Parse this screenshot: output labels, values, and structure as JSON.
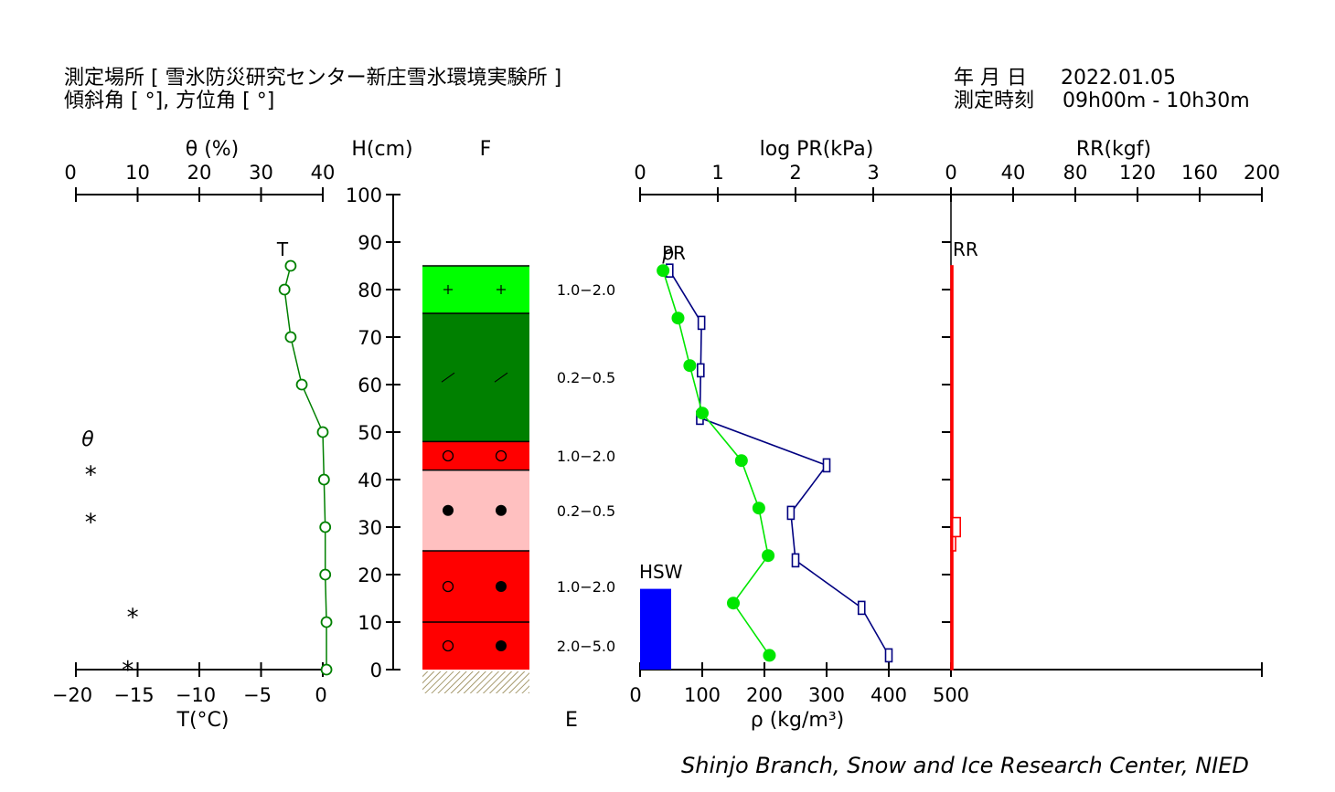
{
  "header": {
    "location_label": "測定場所 [ 雪氷防災研究センター新庄雪氷環境実験所 ]",
    "slope_label": "傾斜角 [ °], 方位角 [ °]",
    "date_label": "年 月 日",
    "date_value": "2022.01.05",
    "time_label": "測定時刻",
    "time_value": "09h00m - 10h30m"
  },
  "credit": "Shinjo Branch, Snow and Ice Research Center, NIED",
  "chart_data": {
    "type": "line",
    "panels": {
      "temperature": {
        "top_label": "θ (%)",
        "top_ticks": [
          "0",
          "10",
          "20",
          "30",
          "40"
        ],
        "bottom_label": "T(°C)",
        "bottom_ticks": [
          "−20",
          "−15",
          "−10",
          "−5",
          "0"
        ],
        "xlim": [
          -20,
          0
        ],
        "series": [
          {
            "name": "T",
            "color": "#008000",
            "points": [
              {
                "h": 85,
                "t": -2.6
              },
              {
                "h": 80,
                "t": -3.1
              },
              {
                "h": 70,
                "t": -2.6
              },
              {
                "h": 60,
                "t": -1.7
              },
              {
                "h": 50,
                "t": 0.0
              },
              {
                "h": 40,
                "t": 0.1
              },
              {
                "h": 30,
                "t": 0.2
              },
              {
                "h": 20,
                "t": 0.2
              },
              {
                "h": 10,
                "t": 0.3
              },
              {
                "h": 0,
                "t": 0.3
              }
            ]
          }
        ],
        "theta_label": "θ",
        "theta_markers": [
          {
            "h": 42,
            "t": -18.8,
            "symbol": "*"
          },
          {
            "h": 32,
            "t": -18.8,
            "symbol": "*"
          },
          {
            "h": 12,
            "t": -15.4,
            "symbol": "*"
          },
          {
            "h": 1,
            "t": -15.8,
            "symbol": "*"
          }
        ]
      },
      "height_axis": {
        "label": "H(cm)",
        "ticks": [
          "0",
          "10",
          "20",
          "30",
          "40",
          "50",
          "60",
          "70",
          "80",
          "90",
          "100"
        ],
        "ylim": [
          0,
          100
        ]
      },
      "layers": {
        "top_label": "F",
        "bottom_label": "E",
        "items": [
          {
            "bottom": 75,
            "top": 85,
            "color": "#00ff00",
            "symbols": [
              "+",
              "+"
            ],
            "grain_size": "1.0−2.0"
          },
          {
            "bottom": 48,
            "top": 75,
            "color": "#008000",
            "symbols": [
              "⟋",
              "⟋"
            ],
            "grain_size": "0.2−0.5"
          },
          {
            "bottom": 42,
            "top": 48,
            "color": "#ff0000",
            "symbols": [
              "○",
              "○"
            ],
            "grain_size": "1.0−2.0"
          },
          {
            "bottom": 25,
            "top": 42,
            "color": "#ffc0c0",
            "symbols": [
              "●",
              "●"
            ],
            "grain_size": "0.2−0.5"
          },
          {
            "bottom": 10,
            "top": 25,
            "color": "#ff0000",
            "symbols": [
              "○",
              "●"
            ],
            "grain_size": "1.0−2.0"
          },
          {
            "bottom": 0,
            "top": 10,
            "color": "#ff0000",
            "symbols": [
              "○",
              "●"
            ],
            "grain_size": "2.0−5.0"
          }
        ]
      },
      "density_pr": {
        "top_label": "log PR(kPa)",
        "top_ticks": [
          "0",
          "1",
          "2",
          "3"
        ],
        "bottom_label": "ρ (kg/m³)",
        "bottom_ticks": [
          "0",
          "100",
          "200",
          "300",
          "400",
          "500"
        ],
        "rho_xlim": [
          0,
          500
        ],
        "logpr_xlim": [
          0,
          4
        ],
        "pr_label": "PR",
        "rho_label": "ρ",
        "density": {
          "color": "#00e600",
          "points": [
            {
              "h": 84,
              "rho": 37
            },
            {
              "h": 74,
              "rho": 61
            },
            {
              "h": 64,
              "rho": 80
            },
            {
              "h": 54,
              "rho": 100
            },
            {
              "h": 44,
              "rho": 163
            },
            {
              "h": 34,
              "rho": 191
            },
            {
              "h": 24,
              "rho": 206
            },
            {
              "h": 14,
              "rho": 150
            },
            {
              "h": 3,
              "rho": 208
            }
          ]
        },
        "pressure": {
          "color": "#000080",
          "points": [
            {
              "h": 84,
              "logpr": 0.38
            },
            {
              "h": 73,
              "logpr": 0.79
            },
            {
              "h": 63,
              "logpr": 0.78
            },
            {
              "h": 53,
              "logpr": 0.77
            },
            {
              "h": 43,
              "logpr": 2.4
            },
            {
              "h": 33,
              "logpr": 1.94
            },
            {
              "h": 23,
              "logpr": 2.0
            },
            {
              "h": 13,
              "logpr": 2.85
            },
            {
              "h": 3,
              "logpr": 3.2
            }
          ]
        },
        "hsw": {
          "label": "HSW",
          "rho": 50,
          "height": 17,
          "color": "#0000ff"
        }
      },
      "rr": {
        "top_label": "RR(kgf)",
        "top_ticks": [
          "0",
          "40",
          "80",
          "120",
          "160",
          "200"
        ],
        "xlim": [
          0,
          200
        ],
        "label": "RR",
        "color": "#ff0000",
        "bars": [
          {
            "bottom": 0,
            "top": 25,
            "value": 1
          },
          {
            "bottom": 25,
            "top": 28,
            "value": 3
          },
          {
            "bottom": 28,
            "top": 32,
            "value": 6
          },
          {
            "bottom": 32,
            "top": 85,
            "value": 1
          }
        ]
      }
    }
  }
}
